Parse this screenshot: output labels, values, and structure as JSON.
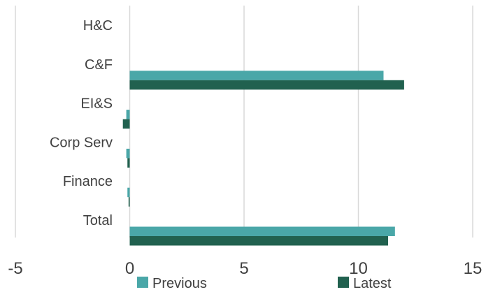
{
  "chart_data": {
    "type": "bar",
    "orientation": "horizontal",
    "categories": [
      "H&C",
      "C&F",
      "EI&S",
      "Corp Serv",
      "Finance",
      "Total"
    ],
    "series": [
      {
        "name": "Previous",
        "color": "#4aa7a8",
        "values": [
          0,
          11.1,
          -0.15,
          -0.15,
          -0.1,
          11.6
        ]
      },
      {
        "name": "Latest",
        "color": "#21614f",
        "values": [
          0,
          12.0,
          -0.3,
          -0.1,
          -0.05,
          11.3
        ]
      }
    ],
    "xlim": [
      -5,
      15
    ],
    "xticks": [
      -5,
      0,
      5,
      10,
      15
    ],
    "xtick_labels": [
      "-5",
      "0",
      "5",
      "10",
      "15"
    ],
    "grid": true,
    "legend_position": "bottom"
  }
}
